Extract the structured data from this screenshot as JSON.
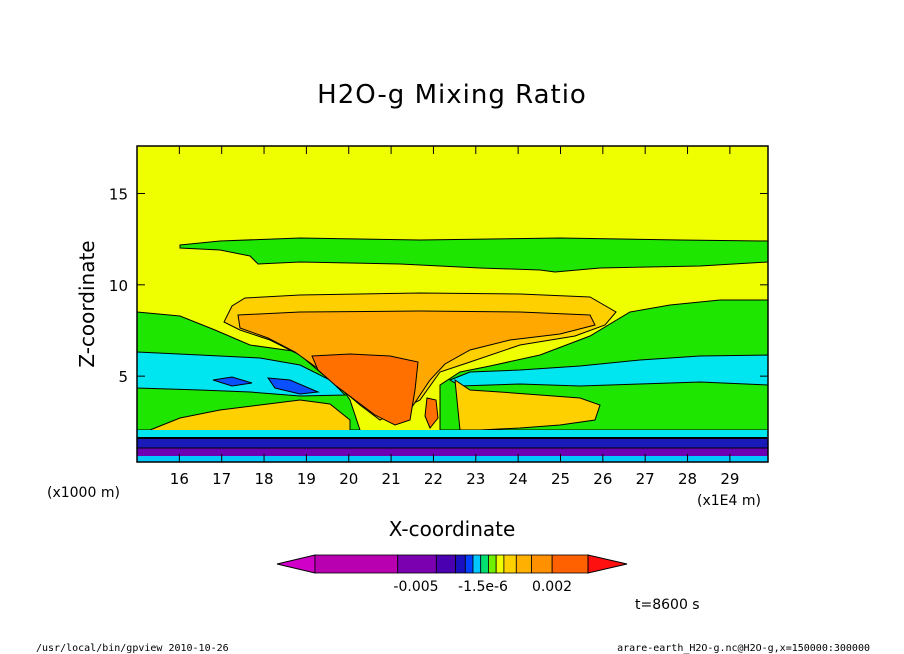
{
  "chart_data": {
    "type": "heatmap",
    "title": "H2O-g Mixing Ratio",
    "xlabel": "X-coordinate",
    "ylabel": "Z-coordinate",
    "x_unit_left": "(x1000 m)",
    "x_unit_right": "(x1E4 m)",
    "x_ticks": [
      16,
      17,
      18,
      19,
      20,
      21,
      22,
      23,
      24,
      25,
      26,
      27,
      28,
      29
    ],
    "y_ticks": [
      5,
      10,
      15
    ],
    "xlim": [
      15,
      29.9
    ],
    "ylim": [
      0.3,
      17.6
    ],
    "colorbar": {
      "tick_labels": [
        "-0.005",
        "-1.5e-6",
        "0.002"
      ],
      "colors": [
        "#d100c8",
        "#b800b0",
        "#7a00b0",
        "#4a00b0",
        "#1a10c0",
        "#0040ff",
        "#00c8ff",
        "#00e070",
        "#70f000",
        "#f0ff00",
        "#ffd000",
        "#ffb000",
        "#ff9000",
        "#ff6000",
        "#ff1010"
      ]
    },
    "time_label": "t=8600 s",
    "footer_left": "/usr/local/bin/gpview  2010-10-26",
    "footer_right": "arare-earth_H2O-g.nc@H2O-g,x=150000:300000"
  },
  "colors": {
    "yellow": "#f0ff00",
    "green": "#1ee600",
    "cyan": "#00e6f0",
    "blue": "#0a50ff",
    "light_orange": "#ffd000",
    "orange": "#ffa800",
    "dark_orange": "#ff7000",
    "purple": "#6e00b4",
    "dark_blue": "#1a1ab8",
    "magenta": "#c800c0"
  }
}
